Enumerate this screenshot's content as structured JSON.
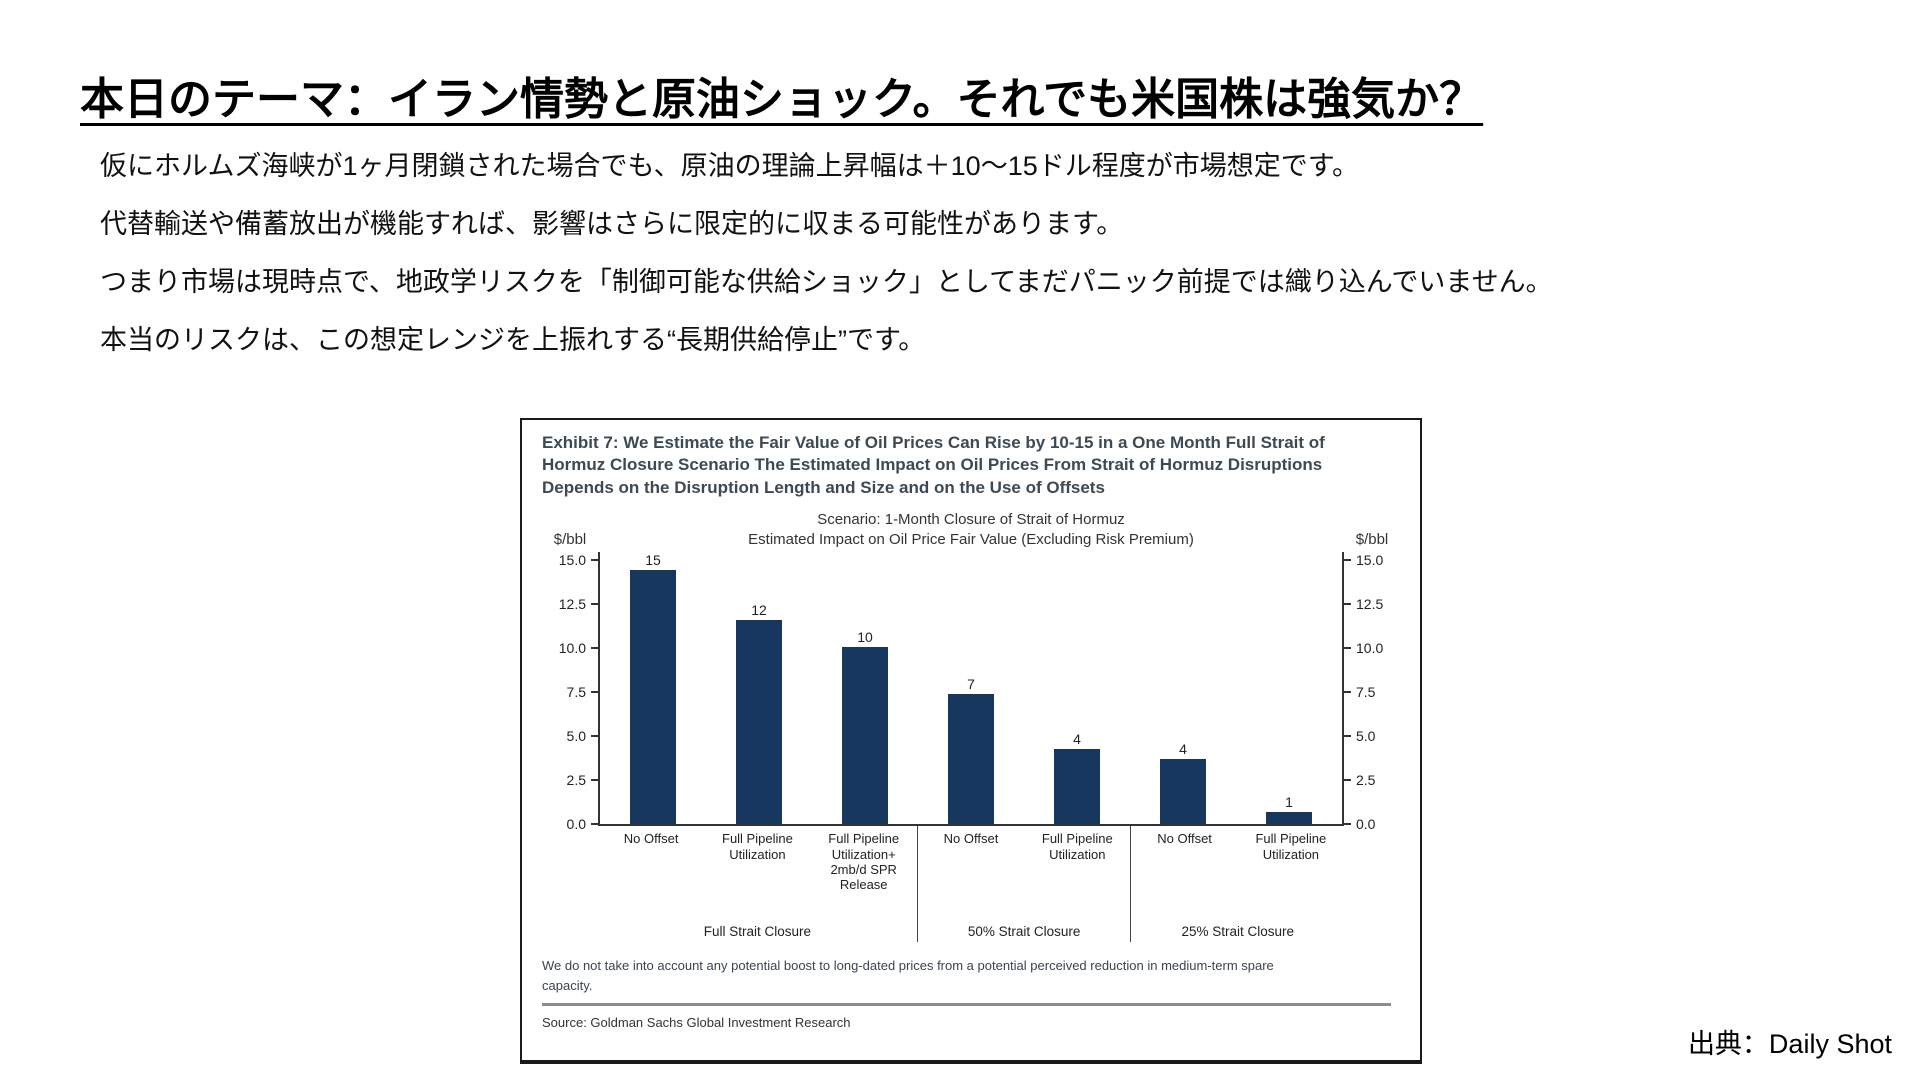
{
  "page": {
    "title": "本日のテーマ：イラン情勢と原油ショック。それでも米国株は強気か？",
    "body_lines": [
      "仮にホルムズ海峡が1ヶ月閉鎖された場合でも、原油の理論上昇幅は＋10〜15ドル程度が市場想定です。",
      "代替輸送や備蓄放出が機能すれば、影響はさらに限定的に収まる可能性があります。",
      "つまり市場は現時点で、地政学リスクを「制御可能な供給ショック」としてまだパニック前提では織り込んでいません。",
      "本当のリスクは、この想定レンジを上振れする“長期供給停止”です。"
    ],
    "attribution": "出典：Daily Shot"
  },
  "exhibit": {
    "heading": "Exhibit 7: We Estimate the Fair Value of Oil Prices Can Rise by 10-15 in a One Month Full Strait of Hormuz Closure Scenario The Estimated Impact on Oil Prices From Strait of Hormuz Disruptions Depends on the Disruption Length and Size and on the Use of Offsets",
    "footnote": "We do not take into account any potential boost to long-dated prices from a potential perceived reduction in medium-term spare capacity.",
    "source": "Source: Goldman Sachs Global Investment Research"
  },
  "chart_data": {
    "type": "bar",
    "title": "Scenario: 1-Month Closure of Strait of Hormuz",
    "subtitle": "Estimated Impact on Oil Price Fair Value (Excluding Risk Premium)",
    "unit_left": "$/bbl",
    "unit_right": "$/bbl",
    "ylim": [
      0,
      15
    ],
    "yticks": [
      "15.0",
      "12.5",
      "10.0",
      "7.5",
      "5.0",
      "2.5",
      "0.0"
    ],
    "grid": false,
    "bar_color": "#17375e",
    "groups": [
      {
        "label": "Full Strait Closure",
        "bars": [
          {
            "category": "No Offset",
            "value": 15,
            "drawn": 14.8
          },
          {
            "category": "Full Pipeline Utilization",
            "value": 12,
            "drawn": 11.6
          },
          {
            "category": "Full Pipeline Utilization+ 2mb/d SPR Release",
            "value": 10,
            "drawn": 10.1
          }
        ]
      },
      {
        "label": "50% Strait Closure",
        "bars": [
          {
            "category": "No Offset",
            "value": 7,
            "drawn": 7.4
          },
          {
            "category": "Full Pipeline Utilization",
            "value": 4,
            "drawn": 4.3
          }
        ]
      },
      {
        "label": "25% Strait Closure",
        "bars": [
          {
            "category": "No Offset",
            "value": 4,
            "drawn": 3.7
          },
          {
            "category": "Full Pipeline Utilization",
            "value": 1,
            "drawn": 0.7
          }
        ]
      }
    ]
  }
}
